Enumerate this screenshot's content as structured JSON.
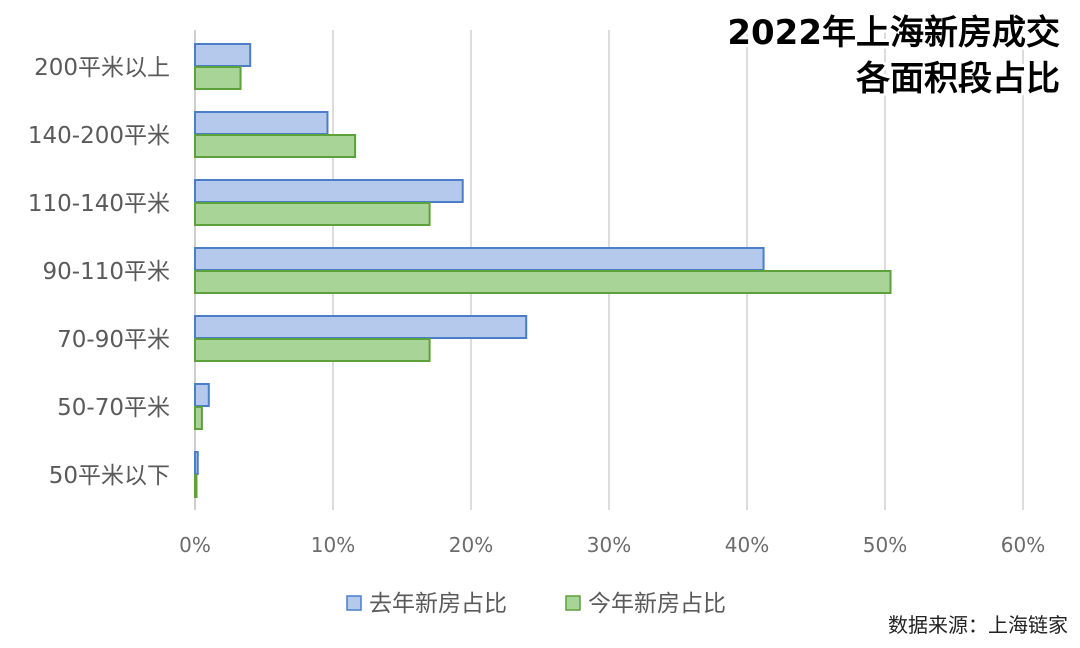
{
  "title_lines": [
    "2022年上海新房成交",
    "各面积段占比"
  ],
  "source": "数据来源：上海链家",
  "colors": {
    "series_fill": [
      "#b4c9eb",
      "#a9d497"
    ],
    "series_stroke": [
      "#4a7ec8",
      "#5da13a"
    ],
    "grid": "#d0d0d0"
  },
  "chart_data": {
    "type": "bar",
    "orientation": "horizontal",
    "categories": [
      "200平米以上",
      "140-200平米",
      "110-140平米",
      "90-110平米",
      "70-90平米",
      "50-70平米",
      "50平米以下"
    ],
    "series": [
      {
        "name": "去年新房占比",
        "values": [
          4.0,
          9.6,
          19.4,
          41.2,
          24.0,
          1.0,
          0.2
        ]
      },
      {
        "name": "今年新房占比",
        "values": [
          3.3,
          11.6,
          17.0,
          50.4,
          17.0,
          0.5,
          0.1
        ]
      }
    ],
    "xlim": [
      0,
      60
    ],
    "xticks": [
      "0%",
      "10%",
      "20%",
      "30%",
      "40%",
      "50%",
      "60%"
    ],
    "unit": "%",
    "grid": true,
    "legend_position": "bottom"
  }
}
